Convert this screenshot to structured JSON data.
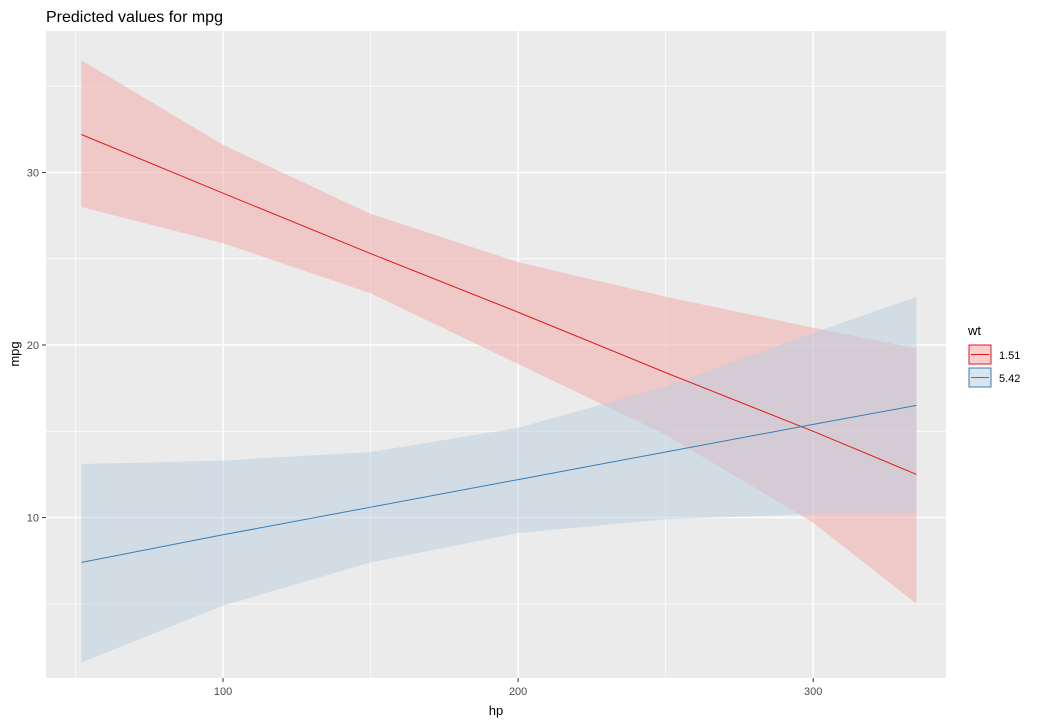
{
  "chart_data": {
    "type": "line",
    "title": "Predicted values for mpg",
    "xlabel": "hp",
    "ylabel": "mpg",
    "xlim": [
      40,
      345
    ],
    "ylim": [
      0.7,
      38.2
    ],
    "x_ticks": [
      100,
      200,
      300
    ],
    "y_ticks": [
      10,
      20,
      30
    ],
    "grid": true,
    "legend": {
      "title": "wt",
      "position": "right"
    },
    "background_color": "#ebebeb",
    "grid_color": "#ffffff",
    "series": [
      {
        "name": "1.51",
        "color": "#e41a1c",
        "fill_color": "#f4a6a6",
        "x": [
          52,
          100,
          150,
          200,
          250,
          300,
          335
        ],
        "y": [
          32.2,
          28.8,
          25.3,
          21.9,
          18.4,
          15.0,
          12.5
        ],
        "lower": [
          28.0,
          25.9,
          23.0,
          18.9,
          14.8,
          9.7,
          5.0
        ],
        "upper": [
          36.5,
          31.6,
          27.6,
          24.8,
          22.8,
          21.0,
          19.8
        ]
      },
      {
        "name": "5.42",
        "color": "#377eb8",
        "fill_color": "#b9cde0",
        "x": [
          52,
          100,
          150,
          200,
          250,
          300,
          335
        ],
        "y": [
          7.4,
          9.0,
          10.6,
          12.2,
          13.8,
          15.4,
          16.5
        ],
        "lower": [
          1.6,
          4.9,
          7.4,
          9.1,
          9.9,
          10.2,
          10.3
        ],
        "upper": [
          13.1,
          13.3,
          13.8,
          15.2,
          17.6,
          20.7,
          22.8
        ]
      }
    ]
  }
}
